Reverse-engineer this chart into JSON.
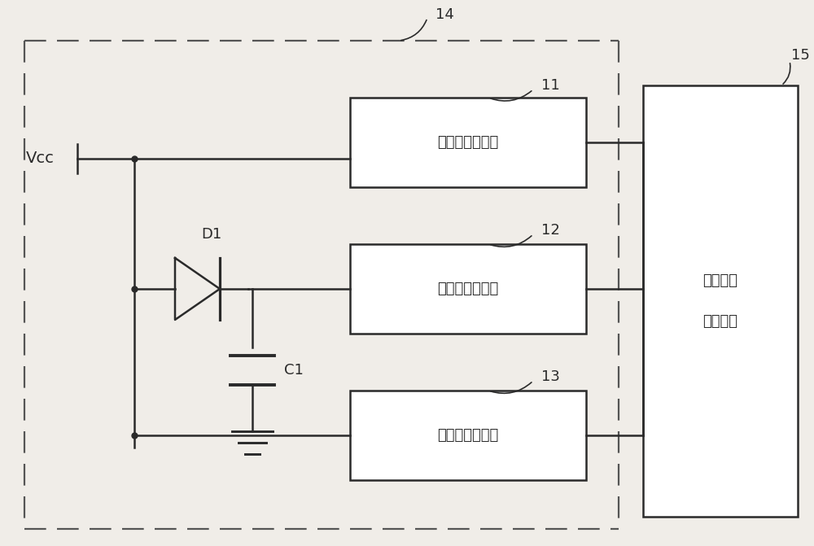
{
  "bg_color": "#f0ede8",
  "line_color": "#2a2a2a",
  "box_color": "#ffffff",
  "dashed_color": "#555555",
  "vcc_label": "Vcc",
  "d1_label": "D1",
  "c1_label": "C1",
  "label_14": "14",
  "label_11": "11",
  "label_12": "12",
  "label_13": "13",
  "label_15": "15",
  "box1_text": "第一电压转换器",
  "box2_text": "第二电压转换器",
  "box3_text": "第三电压转换器",
  "box_right_text_line1": "数字微镜",
  "box_right_text_line2": "芯片本体",
  "font_size_box": 13,
  "font_size_label": 13,
  "font_size_vcc": 14
}
